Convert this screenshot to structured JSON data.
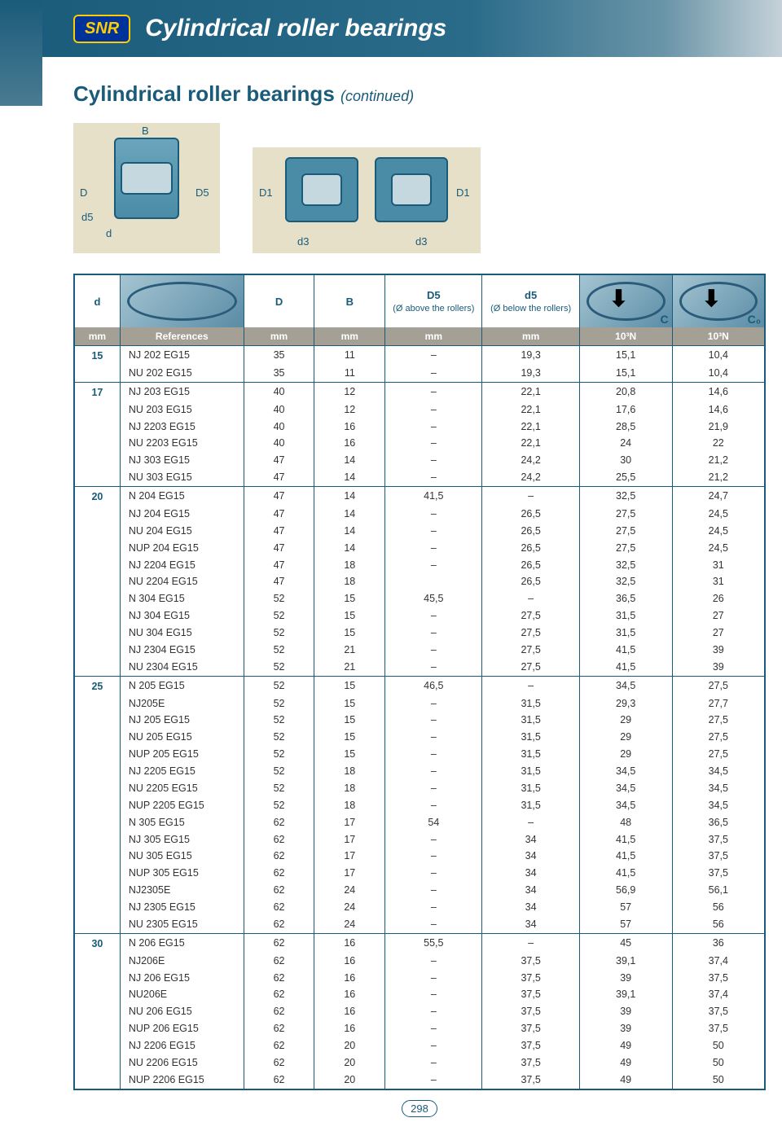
{
  "header": {
    "logo": "SNR",
    "title": "Cylindrical roller bearings"
  },
  "section": {
    "title": "Cylindrical roller bearings",
    "continued": "(continued)"
  },
  "diag": {
    "B": "B",
    "D": "D",
    "D5": "D5",
    "d5": "d5",
    "d": "d",
    "D1": "D1",
    "d3": "d3"
  },
  "table": {
    "headers": {
      "d": "d",
      "D": "D",
      "B": "B",
      "D5": "D5",
      "D5sub": "(Ø above the rollers)",
      "d5": "d5",
      "d5sub": "(Ø below the rollers)",
      "C": "C",
      "C0": "C₀"
    },
    "units": {
      "mm": "mm",
      "ref": "References",
      "n": "10³N"
    },
    "groups": [
      {
        "d": "15",
        "rows": [
          [
            "NJ 202 EG15",
            "35",
            "11",
            "–",
            "19,3",
            "15,1",
            "10,4"
          ],
          [
            "NU 202 EG15",
            "35",
            "11",
            "–",
            "19,3",
            "15,1",
            "10,4"
          ]
        ]
      },
      {
        "d": "17",
        "rows": [
          [
            "NJ 203 EG15",
            "40",
            "12",
            "–",
            "22,1",
            "20,8",
            "14,6"
          ],
          [
            "NU 203 EG15",
            "40",
            "12",
            "–",
            "22,1",
            "17,6",
            "14,6"
          ],
          [
            "NJ 2203 EG15",
            "40",
            "16",
            "–",
            "22,1",
            "28,5",
            "21,9"
          ],
          [
            "NU 2203 EG15",
            "40",
            "16",
            "–",
            "22,1",
            "24",
            "22"
          ],
          [
            "NJ 303 EG15",
            "47",
            "14",
            "–",
            "24,2",
            "30",
            "21,2"
          ],
          [
            "NU 303 EG15",
            "47",
            "14",
            "–",
            "24,2",
            "25,5",
            "21,2"
          ]
        ]
      },
      {
        "d": "20",
        "rows": [
          [
            "N 204 EG15",
            "47",
            "14",
            "41,5",
            "–",
            "32,5",
            "24,7"
          ],
          [
            "NJ 204 EG15",
            "47",
            "14",
            "–",
            "26,5",
            "27,5",
            "24,5"
          ],
          [
            "NU 204 EG15",
            "47",
            "14",
            "–",
            "26,5",
            "27,5",
            "24,5"
          ],
          [
            "NUP 204 EG15",
            "47",
            "14",
            "–",
            "26,5",
            "27,5",
            "24,5"
          ],
          [
            "NJ 2204 EG15",
            "47",
            "18",
            "–",
            "26,5",
            "32,5",
            "31"
          ],
          [
            "NU 2204 EG15",
            "47",
            "18",
            "",
            "26,5",
            "32,5",
            "31"
          ],
          [
            "N 304 EG15",
            "52",
            "15",
            "45,5",
            "–",
            "36,5",
            "26"
          ],
          [
            "NJ 304 EG15",
            "52",
            "15",
            "–",
            "27,5",
            "31,5",
            "27"
          ],
          [
            "NU 304 EG15",
            "52",
            "15",
            "–",
            "27,5",
            "31,5",
            "27"
          ],
          [
            "NJ 2304 EG15",
            "52",
            "21",
            "–",
            "27,5",
            "41,5",
            "39"
          ],
          [
            "NU 2304 EG15",
            "52",
            "21",
            "–",
            "27,5",
            "41,5",
            "39"
          ]
        ]
      },
      {
        "d": "25",
        "rows": [
          [
            "N 205 EG15",
            "52",
            "15",
            "46,5",
            "–",
            "34,5",
            "27,5"
          ],
          [
            "NJ205E",
            "52",
            "15",
            "–",
            "31,5",
            "29,3",
            "27,7"
          ],
          [
            "NJ 205 EG15",
            "52",
            "15",
            "–",
            "31,5",
            "29",
            "27,5"
          ],
          [
            "NU 205 EG15",
            "52",
            "15",
            "–",
            "31,5",
            "29",
            "27,5"
          ],
          [
            "NUP 205 EG15",
            "52",
            "15",
            "–",
            "31,5",
            "29",
            "27,5"
          ],
          [
            "NJ 2205 EG15",
            "52",
            "18",
            "–",
            "31,5",
            "34,5",
            "34,5"
          ],
          [
            "NU 2205 EG15",
            "52",
            "18",
            "–",
            "31,5",
            "34,5",
            "34,5"
          ],
          [
            "NUP 2205 EG15",
            "52",
            "18",
            "–",
            "31,5",
            "34,5",
            "34,5"
          ],
          [
            "N 305 EG15",
            "62",
            "17",
            "54",
            "–",
            "48",
            "36,5"
          ],
          [
            "NJ 305 EG15",
            "62",
            "17",
            "–",
            "34",
            "41,5",
            "37,5"
          ],
          [
            "NU 305 EG15",
            "62",
            "17",
            "–",
            "34",
            "41,5",
            "37,5"
          ],
          [
            "NUP 305 EG15",
            "62",
            "17",
            "–",
            "34",
            "41,5",
            "37,5"
          ],
          [
            "NJ2305E",
            "62",
            "24",
            "–",
            "34",
            "56,9",
            "56,1"
          ],
          [
            "NJ 2305 EG15",
            "62",
            "24",
            "–",
            "34",
            "57",
            "56"
          ],
          [
            "NU 2305 EG15",
            "62",
            "24",
            "–",
            "34",
            "57",
            "56"
          ]
        ]
      },
      {
        "d": "30",
        "rows": [
          [
            "N 206 EG15",
            "62",
            "16",
            "55,5",
            "–",
            "45",
            "36"
          ],
          [
            "NJ206E",
            "62",
            "16",
            "–",
            "37,5",
            "39,1",
            "37,4"
          ],
          [
            "NJ 206 EG15",
            "62",
            "16",
            "–",
            "37,5",
            "39",
            "37,5"
          ],
          [
            "NU206E",
            "62",
            "16",
            "–",
            "37,5",
            "39,1",
            "37,4"
          ],
          [
            "NU 206 EG15",
            "62",
            "16",
            "–",
            "37,5",
            "39",
            "37,5"
          ],
          [
            "NUP 206 EG15",
            "62",
            "16",
            "–",
            "37,5",
            "39",
            "37,5"
          ],
          [
            "NJ 2206 EG15",
            "62",
            "20",
            "–",
            "37,5",
            "49",
            "50"
          ],
          [
            "NU 2206 EG15",
            "62",
            "20",
            "–",
            "37,5",
            "49",
            "50"
          ],
          [
            "NUP 2206 EG15",
            "62",
            "20",
            "–",
            "37,5",
            "49",
            "50"
          ]
        ]
      }
    ]
  },
  "pageNum": "298",
  "colors": {
    "primary": "#1a5b7a",
    "headerGrad1": "#1a5b7a",
    "headerGrad2": "#c5d2d9",
    "logoBg": "#00339a",
    "logoFg": "#ffcc00",
    "unitRow": "#a5a096",
    "diagBg": "#e6e0c8"
  }
}
